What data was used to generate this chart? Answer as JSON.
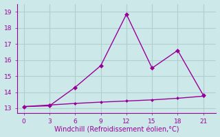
{
  "line1_x": [
    0,
    3,
    6,
    9,
    12,
    15,
    18,
    21
  ],
  "line1_y": [
    13.1,
    13.15,
    14.3,
    15.65,
    18.85,
    15.5,
    16.6,
    13.8
  ],
  "line2_x": [
    0,
    3,
    6,
    9,
    12,
    15,
    18,
    21
  ],
  "line2_y": [
    13.1,
    13.2,
    13.3,
    13.38,
    13.45,
    13.52,
    13.62,
    13.75
  ],
  "color": "#990099",
  "bg_color": "#cce8e8",
  "grid_color": "#b0d0d0",
  "xlabel": "Windchill (Refroidissement éolien,°C)",
  "xlabel_color": "#990099",
  "xticks": [
    0,
    3,
    6,
    9,
    12,
    15,
    18,
    21
  ],
  "yticks": [
    13,
    14,
    15,
    16,
    17,
    18,
    19
  ],
  "ylim": [
    12.7,
    19.5
  ],
  "xlim": [
    -0.8,
    22.5
  ],
  "tick_color": "#990099",
  "marker": "D",
  "markersize_line1": 3.0,
  "markersize_line2": 2.0,
  "linewidth": 1.0
}
